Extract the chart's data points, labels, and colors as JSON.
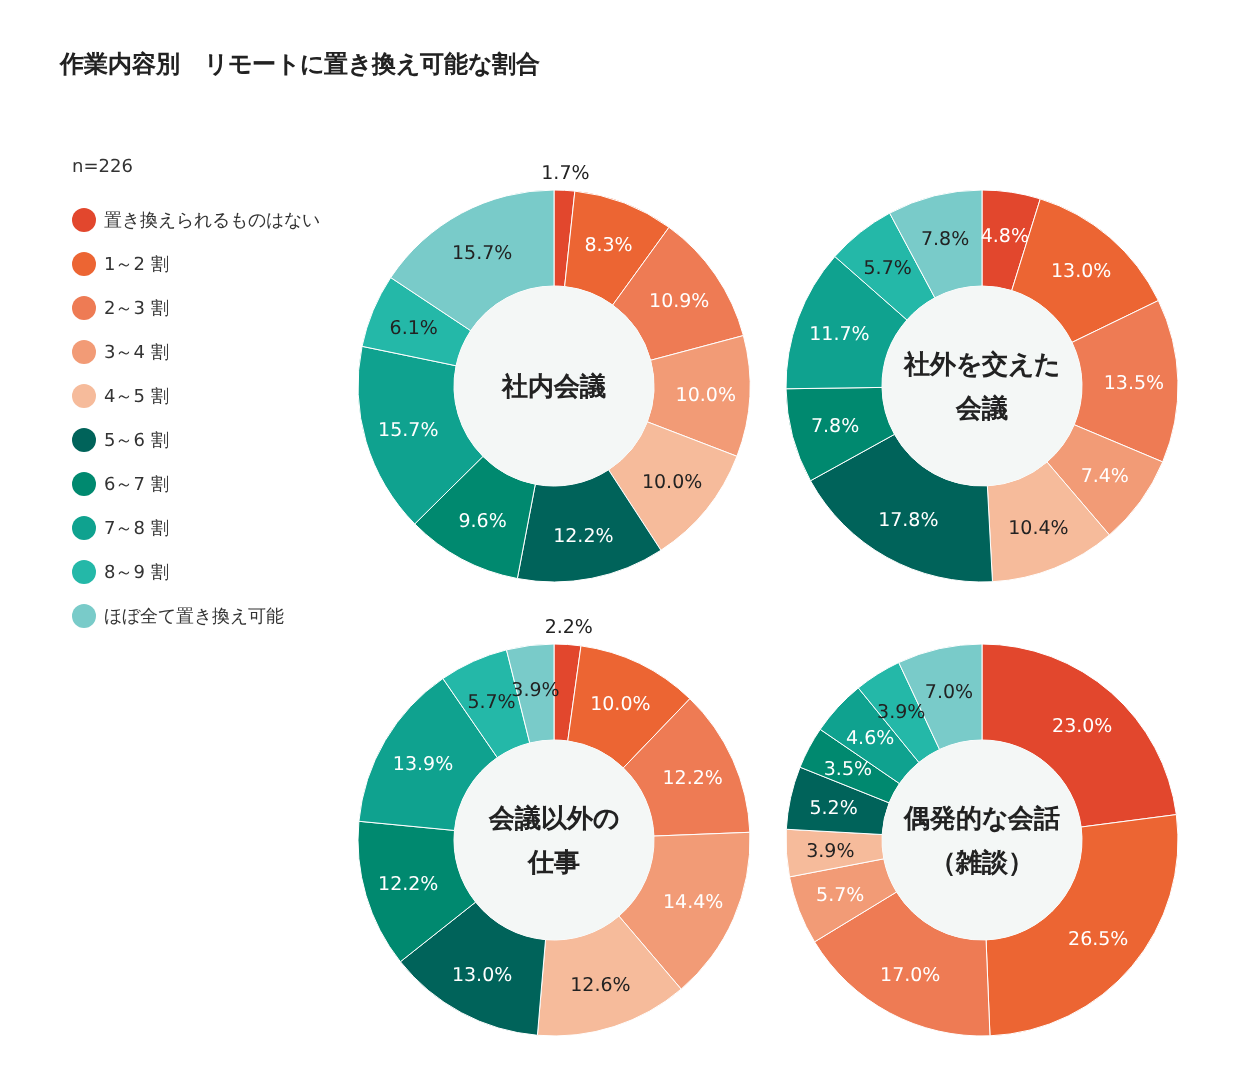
{
  "chart_data": [
    {
      "type": "donut",
      "title": "社内会議",
      "annotations": [
        "作業内容別　リモートに置き換え可能な割合"
      ],
      "legend_title": "n=226",
      "legend": "left",
      "data_labels": true,
      "categories": [
        "置き換えられるものはない",
        "1～2 割",
        "2～3 割",
        "3～4 割",
        "4～5 割",
        "5～6 割",
        "6～7 割",
        "7～8 割",
        "8～9 割",
        "ほぼ全て置き換え可能"
      ],
      "values": [
        1.7,
        8.3,
        10.9,
        10.0,
        10.0,
        12.2,
        9.6,
        15.7,
        6.1,
        15.7
      ],
      "value_labels": [
        "1.7%",
        "8.3%",
        "10.9%",
        "10.0%",
        "10.0%",
        "12.2%",
        "9.6%",
        "15.7%",
        "6.1%",
        "15.7%"
      ],
      "colors": [
        "#e2472d",
        "#ec6533",
        "#ee7b54",
        "#f29b76",
        "#f6bb9b",
        "#00635a",
        "#00896f",
        "#0fa28f",
        "#24b8a8",
        "#79cbc9"
      ]
    },
    {
      "type": "donut",
      "title": "社外を交えた会議",
      "data_labels": true,
      "values": [
        4.8,
        13.0,
        13.5,
        7.4,
        10.4,
        17.8,
        7.8,
        11.7,
        5.7,
        7.8
      ],
      "value_labels": [
        "4.8%",
        "13.0%",
        "13.5%",
        "7.4%",
        "10.4%",
        "17.8%",
        "7.8%",
        "11.7%",
        "5.7%",
        "7.8%"
      ],
      "colors": [
        "#e2472d",
        "#ec6533",
        "#ee7b54",
        "#f29b76",
        "#f6bb9b",
        "#00635a",
        "#00896f",
        "#0fa28f",
        "#24b8a8",
        "#79cbc9"
      ]
    },
    {
      "type": "donut",
      "title": "会議以外の仕事",
      "data_labels": true,
      "values": [
        2.2,
        10.0,
        12.2,
        14.4,
        12.6,
        13.0,
        12.2,
        13.9,
        5.7,
        3.9
      ],
      "value_labels": [
        "2.2%",
        "10.0%",
        "12.2%",
        "14.4%",
        "12.6%",
        "13.0%",
        "12.2%",
        "13.9%",
        "5.7%",
        "3.9%"
      ],
      "colors": [
        "#e2472d",
        "#ec6533",
        "#ee7b54",
        "#f29b76",
        "#f6bb9b",
        "#00635a",
        "#00896f",
        "#0fa28f",
        "#24b8a8",
        "#79cbc9"
      ]
    },
    {
      "type": "donut",
      "title": "偶発的な会話（雑談）",
      "data_labels": true,
      "values": [
        23.0,
        26.5,
        17.0,
        5.7,
        3.9,
        5.2,
        3.5,
        4.6,
        3.9,
        7.0
      ],
      "value_labels": [
        "23.0%",
        "26.5%",
        "17.0%",
        "5.7%",
        "3.9%",
        "5.2%",
        "3.5%",
        "4.6%",
        "3.9%",
        "7.0%"
      ],
      "colors": [
        "#e2472d",
        "#ec6533",
        "#ee7b54",
        "#f29b76",
        "#f6bb9b",
        "#00635a",
        "#00896f",
        "#0fa28f",
        "#24b8a8",
        "#79cbc9"
      ]
    }
  ]
}
